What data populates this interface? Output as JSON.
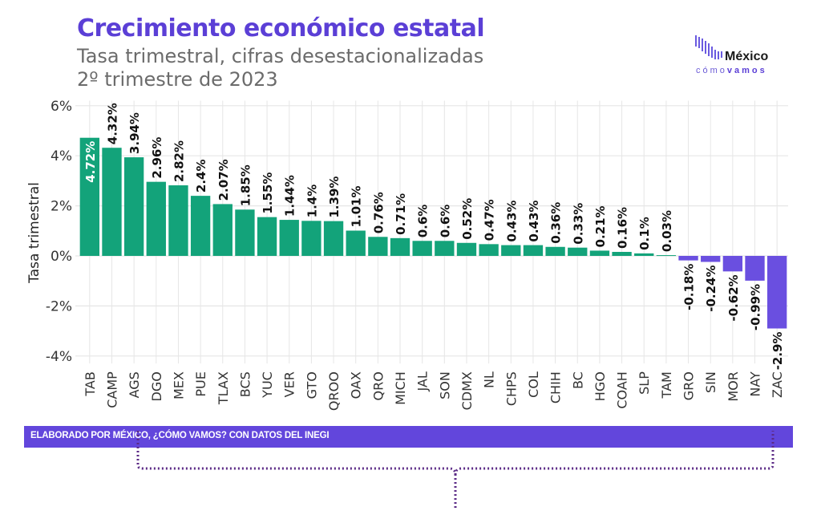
{
  "header": {
    "title": "Crecimiento económico estatal",
    "subtitle_line1": "Tasa trimestral, cifras desestacionalizadas",
    "subtitle_line2": "2º trimestre de 2023"
  },
  "logo": {
    "word": "México",
    "sub_light": "cómo",
    "sub_bold": "vamos"
  },
  "footer": {
    "text": "ELABORADO POR MÉXICO, ¿CÓMO VAMOS? CON DATOS DEL INEGI"
  },
  "colors": {
    "title": "#5b3fd6",
    "positive": "#13a37a",
    "negative": "#6a4fe0",
    "footer": "#6246dc",
    "grid": "#e6e6e6"
  },
  "chart_data": {
    "type": "bar",
    "title": "Crecimiento económico estatal",
    "subtitle": "Tasa trimestral, cifras desestacionalizadas — 2º trimestre de 2023",
    "xlabel": "",
    "ylabel": "Tasa trimestral",
    "ylim": [
      -4.3,
      6.2
    ],
    "yticks": [
      -4,
      -2,
      0,
      2,
      4,
      6
    ],
    "ytick_labels": [
      "-4%",
      "-2%",
      "0%",
      "2%",
      "4%",
      "6%"
    ],
    "grid": true,
    "legend": "none",
    "categories": [
      "TAB",
      "CAMP",
      "AGS",
      "DGO",
      "MEX",
      "PUE",
      "TLAX",
      "BCS",
      "YUC",
      "VER",
      "GTO",
      "QROO",
      "OAX",
      "QRO",
      "MICH",
      "JAL",
      "SON",
      "CDMX",
      "NL",
      "CHPS",
      "COL",
      "CHIH",
      "BC",
      "HGO",
      "COAH",
      "SLP",
      "TAM",
      "GRO",
      "SIN",
      "MOR",
      "NAY",
      "ZAC"
    ],
    "values": [
      4.72,
      4.32,
      3.94,
      2.96,
      2.82,
      2.4,
      2.07,
      1.85,
      1.55,
      1.44,
      1.4,
      1.39,
      1.01,
      0.76,
      0.71,
      0.6,
      0.6,
      0.52,
      0.47,
      0.43,
      0.43,
      0.36,
      0.33,
      0.21,
      0.16,
      0.1,
      0.03,
      -0.18,
      -0.24,
      -0.62,
      -0.99,
      -2.9
    ],
    "data_labels": [
      "4.72%",
      "4.32%",
      "3.94%",
      "2.96%",
      "2.82%",
      "2.4%",
      "2.07%",
      "1.85%",
      "1.55%",
      "1.44%",
      "1.4%",
      "1.39%",
      "1.01%",
      "0.76%",
      "0.71%",
      "0.6%",
      "0.6%",
      "0.52%",
      "0.47%",
      "0.43%",
      "0.43%",
      "0.36%",
      "0.33%",
      "0.21%",
      "0.16%",
      "0.1%",
      "0.03%",
      "-0.18%",
      "-0.24%",
      "-0.62%",
      "-0.99%",
      "-2.9%"
    ]
  }
}
